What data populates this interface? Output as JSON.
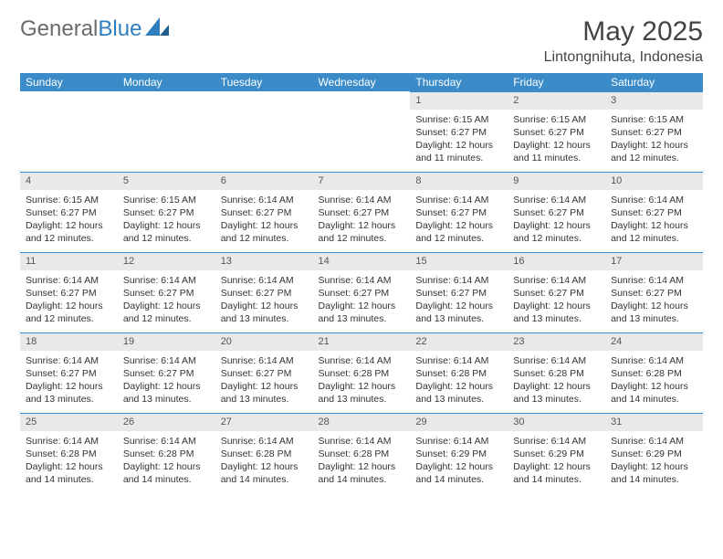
{
  "brand": {
    "part1": "General",
    "part2": "Blue"
  },
  "title": "May 2025",
  "location": "Lintongnihuta, Indonesia",
  "colors": {
    "header_bg": "#3b8bc9",
    "header_text": "#ffffff",
    "daynum_bg": "#e9e9e9",
    "daynum_border": "#3b8bc9",
    "text": "#333333",
    "brand_gray": "#6b6b6b",
    "brand_blue": "#2f7fc0"
  },
  "weekdays": [
    "Sunday",
    "Monday",
    "Tuesday",
    "Wednesday",
    "Thursday",
    "Friday",
    "Saturday"
  ],
  "weeks": [
    [
      null,
      null,
      null,
      null,
      {
        "n": "1",
        "sr": "Sunrise: 6:15 AM",
        "ss": "Sunset: 6:27 PM",
        "dl": "Daylight: 12 hours and 11 minutes."
      },
      {
        "n": "2",
        "sr": "Sunrise: 6:15 AM",
        "ss": "Sunset: 6:27 PM",
        "dl": "Daylight: 12 hours and 11 minutes."
      },
      {
        "n": "3",
        "sr": "Sunrise: 6:15 AM",
        "ss": "Sunset: 6:27 PM",
        "dl": "Daylight: 12 hours and 12 minutes."
      }
    ],
    [
      {
        "n": "4",
        "sr": "Sunrise: 6:15 AM",
        "ss": "Sunset: 6:27 PM",
        "dl": "Daylight: 12 hours and 12 minutes."
      },
      {
        "n": "5",
        "sr": "Sunrise: 6:15 AM",
        "ss": "Sunset: 6:27 PM",
        "dl": "Daylight: 12 hours and 12 minutes."
      },
      {
        "n": "6",
        "sr": "Sunrise: 6:14 AM",
        "ss": "Sunset: 6:27 PM",
        "dl": "Daylight: 12 hours and 12 minutes."
      },
      {
        "n": "7",
        "sr": "Sunrise: 6:14 AM",
        "ss": "Sunset: 6:27 PM",
        "dl": "Daylight: 12 hours and 12 minutes."
      },
      {
        "n": "8",
        "sr": "Sunrise: 6:14 AM",
        "ss": "Sunset: 6:27 PM",
        "dl": "Daylight: 12 hours and 12 minutes."
      },
      {
        "n": "9",
        "sr": "Sunrise: 6:14 AM",
        "ss": "Sunset: 6:27 PM",
        "dl": "Daylight: 12 hours and 12 minutes."
      },
      {
        "n": "10",
        "sr": "Sunrise: 6:14 AM",
        "ss": "Sunset: 6:27 PM",
        "dl": "Daylight: 12 hours and 12 minutes."
      }
    ],
    [
      {
        "n": "11",
        "sr": "Sunrise: 6:14 AM",
        "ss": "Sunset: 6:27 PM",
        "dl": "Daylight: 12 hours and 12 minutes."
      },
      {
        "n": "12",
        "sr": "Sunrise: 6:14 AM",
        "ss": "Sunset: 6:27 PM",
        "dl": "Daylight: 12 hours and 12 minutes."
      },
      {
        "n": "13",
        "sr": "Sunrise: 6:14 AM",
        "ss": "Sunset: 6:27 PM",
        "dl": "Daylight: 12 hours and 13 minutes."
      },
      {
        "n": "14",
        "sr": "Sunrise: 6:14 AM",
        "ss": "Sunset: 6:27 PM",
        "dl": "Daylight: 12 hours and 13 minutes."
      },
      {
        "n": "15",
        "sr": "Sunrise: 6:14 AM",
        "ss": "Sunset: 6:27 PM",
        "dl": "Daylight: 12 hours and 13 minutes."
      },
      {
        "n": "16",
        "sr": "Sunrise: 6:14 AM",
        "ss": "Sunset: 6:27 PM",
        "dl": "Daylight: 12 hours and 13 minutes."
      },
      {
        "n": "17",
        "sr": "Sunrise: 6:14 AM",
        "ss": "Sunset: 6:27 PM",
        "dl": "Daylight: 12 hours and 13 minutes."
      }
    ],
    [
      {
        "n": "18",
        "sr": "Sunrise: 6:14 AM",
        "ss": "Sunset: 6:27 PM",
        "dl": "Daylight: 12 hours and 13 minutes."
      },
      {
        "n": "19",
        "sr": "Sunrise: 6:14 AM",
        "ss": "Sunset: 6:27 PM",
        "dl": "Daylight: 12 hours and 13 minutes."
      },
      {
        "n": "20",
        "sr": "Sunrise: 6:14 AM",
        "ss": "Sunset: 6:27 PM",
        "dl": "Daylight: 12 hours and 13 minutes."
      },
      {
        "n": "21",
        "sr": "Sunrise: 6:14 AM",
        "ss": "Sunset: 6:28 PM",
        "dl": "Daylight: 12 hours and 13 minutes."
      },
      {
        "n": "22",
        "sr": "Sunrise: 6:14 AM",
        "ss": "Sunset: 6:28 PM",
        "dl": "Daylight: 12 hours and 13 minutes."
      },
      {
        "n": "23",
        "sr": "Sunrise: 6:14 AM",
        "ss": "Sunset: 6:28 PM",
        "dl": "Daylight: 12 hours and 13 minutes."
      },
      {
        "n": "24",
        "sr": "Sunrise: 6:14 AM",
        "ss": "Sunset: 6:28 PM",
        "dl": "Daylight: 12 hours and 14 minutes."
      }
    ],
    [
      {
        "n": "25",
        "sr": "Sunrise: 6:14 AM",
        "ss": "Sunset: 6:28 PM",
        "dl": "Daylight: 12 hours and 14 minutes."
      },
      {
        "n": "26",
        "sr": "Sunrise: 6:14 AM",
        "ss": "Sunset: 6:28 PM",
        "dl": "Daylight: 12 hours and 14 minutes."
      },
      {
        "n": "27",
        "sr": "Sunrise: 6:14 AM",
        "ss": "Sunset: 6:28 PM",
        "dl": "Daylight: 12 hours and 14 minutes."
      },
      {
        "n": "28",
        "sr": "Sunrise: 6:14 AM",
        "ss": "Sunset: 6:28 PM",
        "dl": "Daylight: 12 hours and 14 minutes."
      },
      {
        "n": "29",
        "sr": "Sunrise: 6:14 AM",
        "ss": "Sunset: 6:29 PM",
        "dl": "Daylight: 12 hours and 14 minutes."
      },
      {
        "n": "30",
        "sr": "Sunrise: 6:14 AM",
        "ss": "Sunset: 6:29 PM",
        "dl": "Daylight: 12 hours and 14 minutes."
      },
      {
        "n": "31",
        "sr": "Sunrise: 6:14 AM",
        "ss": "Sunset: 6:29 PM",
        "dl": "Daylight: 12 hours and 14 minutes."
      }
    ]
  ]
}
